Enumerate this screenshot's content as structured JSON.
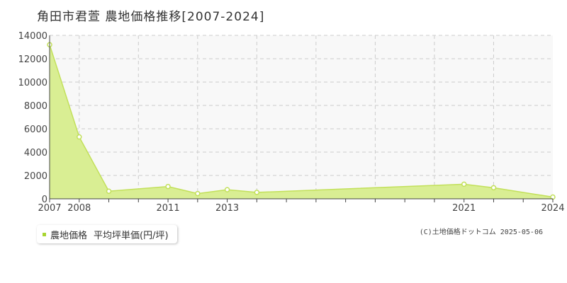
{
  "chart_data": {
    "type": "area",
    "title": "角田市君萱 農地価格推移[2007-2024]",
    "x_tick_labels": [
      "2007",
      "2008",
      "2011",
      "2013",
      "2021",
      "2024"
    ],
    "y_tick_labels": [
      "0",
      "2000",
      "4000",
      "6000",
      "8000",
      "10000",
      "12000",
      "14000"
    ],
    "ylim": [
      0,
      14000
    ],
    "grid": true,
    "series": [
      {
        "name": "農地価格 平均坪単価(円/坪)",
        "color": "#c2e05a",
        "fill": "#d9ee93",
        "points": [
          {
            "x": "2007",
            "y": 13200
          },
          {
            "x": "2008",
            "y": 5300
          },
          {
            "x": "2009",
            "y": 650
          },
          {
            "x": "2011",
            "y": 1050
          },
          {
            "x": "2012",
            "y": 450
          },
          {
            "x": "2013",
            "y": 780
          },
          {
            "x": "2014",
            "y": 550
          },
          {
            "x": "2021",
            "y": 1250
          },
          {
            "x": "2022",
            "y": 950
          },
          {
            "x": "2024",
            "y": 150
          }
        ]
      }
    ]
  },
  "legend": {
    "marker_color": "#a8d530",
    "label_main": "農地価格",
    "label_sub": "平均坪単価(円/坪)"
  },
  "copyright": "(C)土地価格ドットコム 2025-05-06"
}
